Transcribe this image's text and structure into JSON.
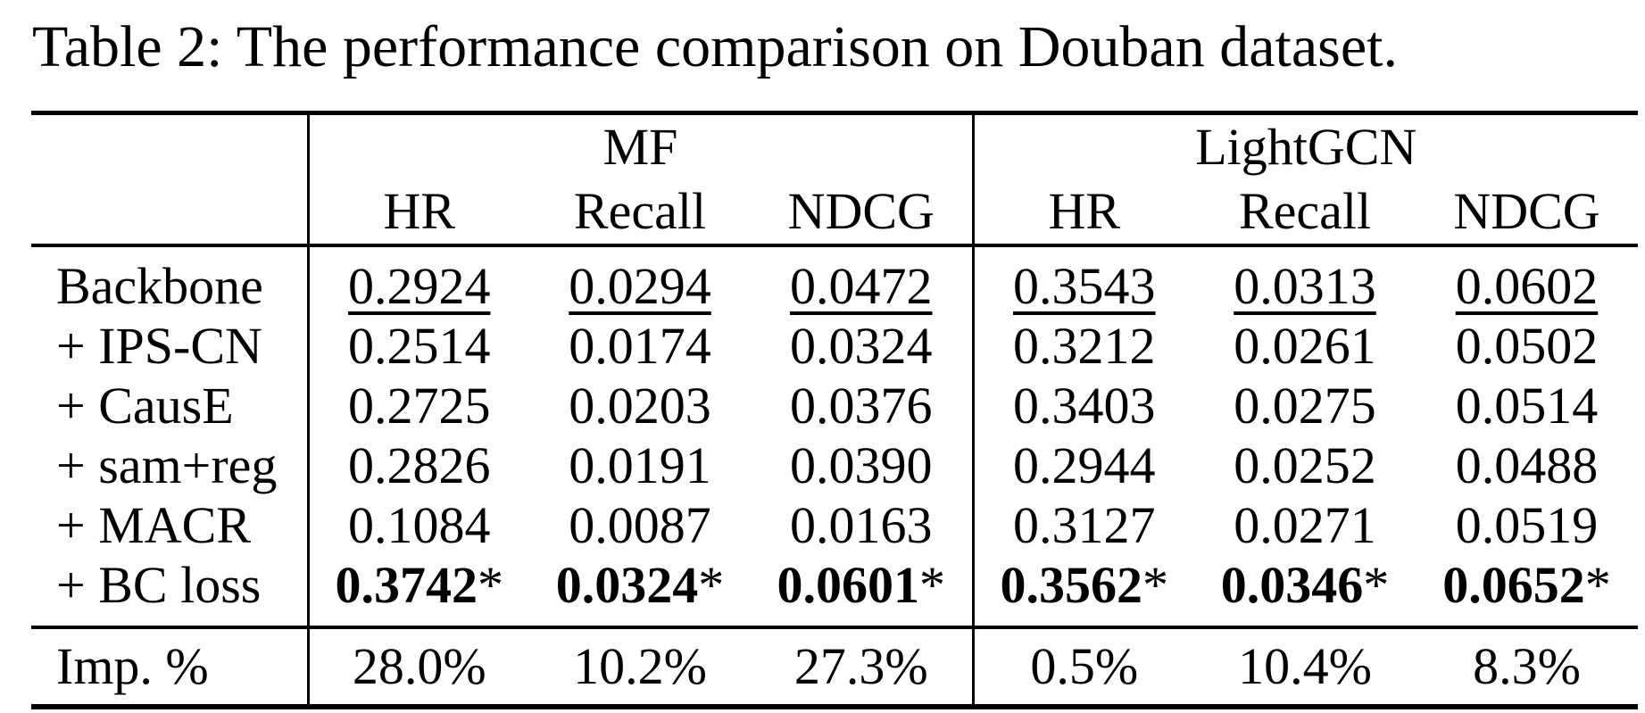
{
  "caption": "Table 2: The performance comparison on Douban dataset.",
  "colors": {
    "text": "#000000",
    "background": "#ffffff",
    "rule": "#000000"
  },
  "table": {
    "groups": [
      {
        "label": "MF"
      },
      {
        "label": "LightGCN"
      }
    ],
    "metrics": [
      "HR",
      "Recall",
      "NDCG",
      "HR",
      "Recall",
      "NDCG"
    ],
    "star_suffix": "*",
    "rows": [
      {
        "label": "Backbone",
        "emphasis": "underline",
        "values": [
          "0.2924",
          "0.0294",
          "0.0472",
          "0.3543",
          "0.0313",
          "0.0602"
        ]
      },
      {
        "label": "+ IPS-CN",
        "emphasis": "none",
        "values": [
          "0.2514",
          "0.0174",
          "0.0324",
          "0.3212",
          "0.0261",
          "0.0502"
        ]
      },
      {
        "label": "+ CausE",
        "emphasis": "none",
        "values": [
          "0.2725",
          "0.0203",
          "0.0376",
          "0.3403",
          "0.0275",
          "0.0514"
        ]
      },
      {
        "label": "+ sam+reg",
        "emphasis": "none",
        "values": [
          "0.2826",
          "0.0191",
          "0.0390",
          "0.2944",
          "0.0252",
          "0.0488"
        ]
      },
      {
        "label": "+ MACR",
        "emphasis": "none",
        "values": [
          "0.1084",
          "0.0087",
          "0.0163",
          "0.3127",
          "0.0271",
          "0.0519"
        ]
      },
      {
        "label": "+ BC loss",
        "emphasis": "bold-star",
        "values": [
          "0.3742",
          "0.0324",
          "0.0601",
          "0.3562",
          "0.0346",
          "0.0652"
        ]
      }
    ],
    "footer": {
      "label": "Imp. %",
      "values": [
        "28.0%",
        "10.2%",
        "27.3%",
        "0.5%",
        "10.4%",
        "8.3%"
      ]
    }
  }
}
